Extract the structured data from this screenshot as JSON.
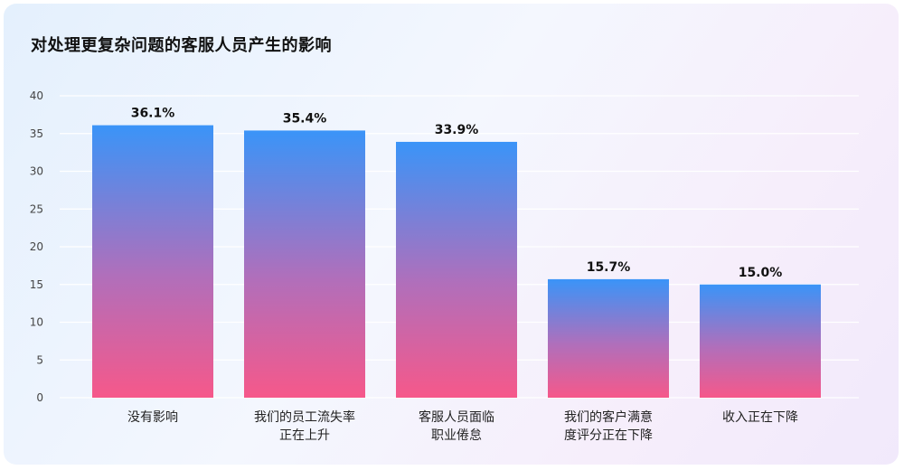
{
  "chart_data": {
    "type": "bar",
    "title": "对处理更复杂问题的客服人员产生的影响",
    "categories": [
      [
        "没有影响"
      ],
      [
        "我们的员工流失率",
        "正在上升"
      ],
      [
        "客服人员面临",
        "职业倦怠"
      ],
      [
        "我们的客户满意",
        "度评分正在下降"
      ],
      [
        "收入正在下降"
      ]
    ],
    "values": [
      36.1,
      35.4,
      33.9,
      15.7,
      15.0
    ],
    "value_labels": [
      "36.1%",
      "35.4%",
      "33.9%",
      "15.7%",
      "15.0%"
    ],
    "ylim": [
      0,
      40
    ],
    "yticks": [
      0,
      5,
      10,
      15,
      20,
      25,
      30,
      35,
      40
    ],
    "grid": true,
    "xlabel": "",
    "ylabel": "",
    "colors": {
      "bar_top": "#3a94f8",
      "bar_bottom": "#f6588a",
      "grid": "#ffffff"
    }
  }
}
